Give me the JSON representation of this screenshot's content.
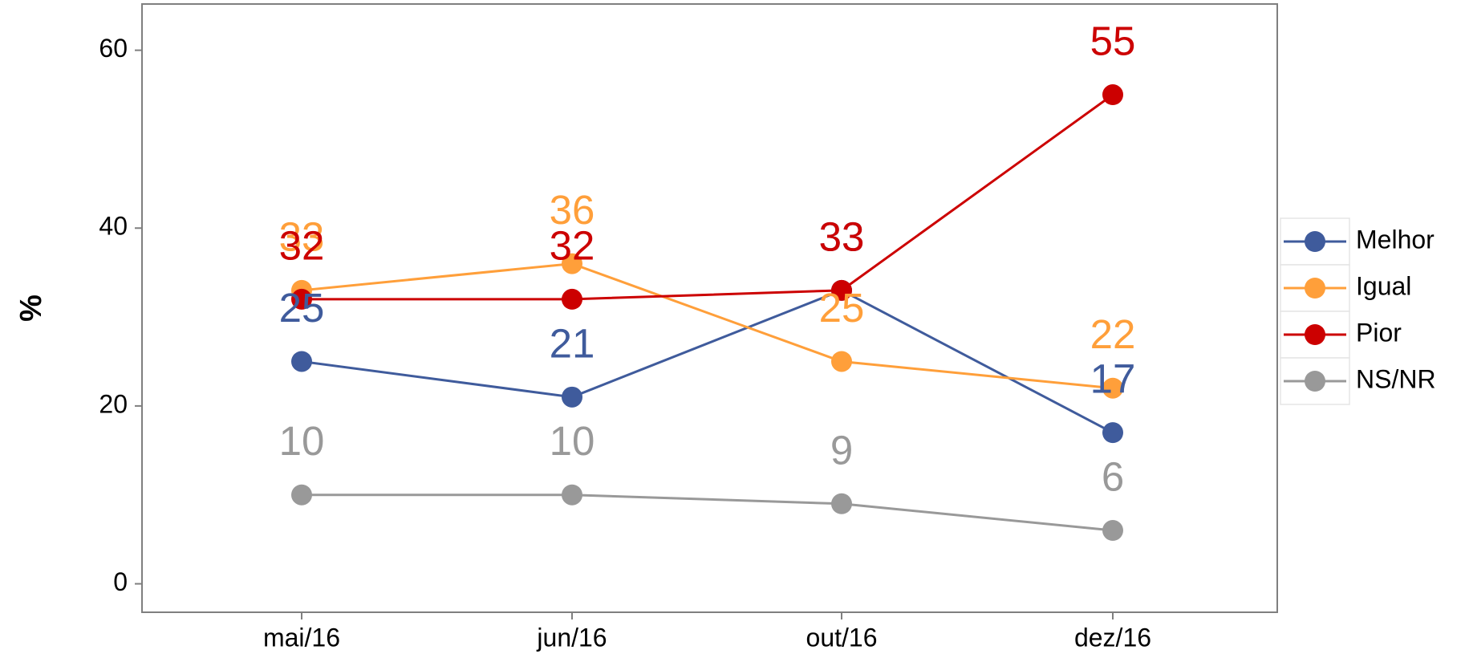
{
  "chart_data": {
    "type": "line",
    "y_label": "%",
    "categories": [
      "mai/16",
      "jun/16",
      "out/16",
      "dez/16"
    ],
    "series": [
      {
        "name": "Melhor",
        "color": "#3F5B9C",
        "values": [
          25,
          21,
          33,
          17
        ]
      },
      {
        "name": "Igual",
        "color": "#FF9F3A",
        "values": [
          33,
          36,
          25,
          22
        ]
      },
      {
        "name": "Pior",
        "color": "#CC0000",
        "values": [
          32,
          32,
          33,
          55
        ]
      },
      {
        "name": "NS/NR",
        "color": "#999999",
        "values": [
          10,
          10,
          9,
          6
        ]
      }
    ],
    "ylim": [
      -3.2,
      65.2
    ],
    "yticks": [
      0,
      20,
      40,
      60
    ],
    "grid": false,
    "legend": "right"
  }
}
